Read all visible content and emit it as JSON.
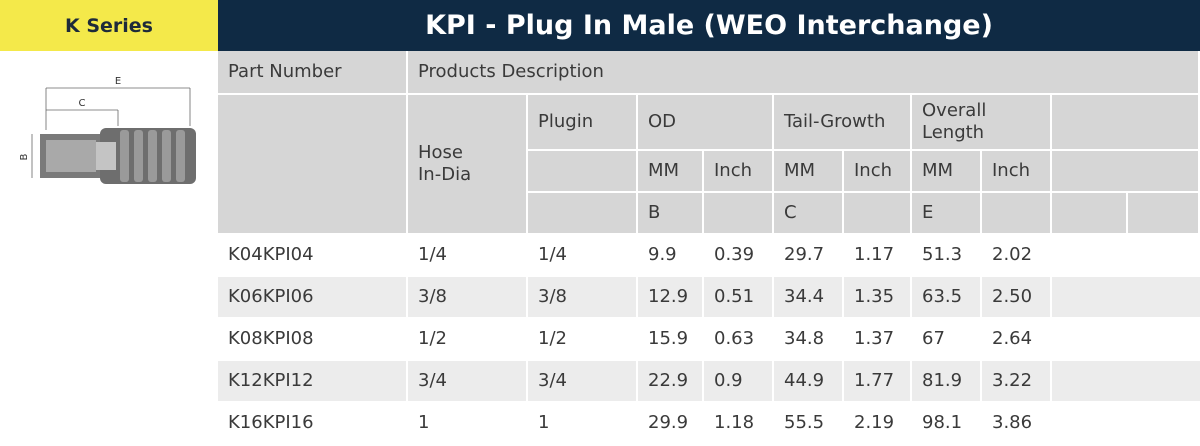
{
  "series_label": "K Series",
  "title": "KPI - Plug In Male (WEO Interchange)",
  "diagram": {
    "labels": {
      "e": "E",
      "c": "C",
      "b": "B"
    }
  },
  "header": {
    "part_number": "Part Number",
    "products_description": "Products Description",
    "hose_in_dia": "Hose In-Dia",
    "plugin": "Plugin",
    "od": "OD",
    "tail_growth": "Tail-Growth",
    "overall_length": "Overall Length",
    "mm": "MM",
    "inch": "Inch",
    "dim_b": "B",
    "dim_c": "C",
    "dim_e": "E"
  },
  "rows": [
    {
      "part": "K04KPI04",
      "hose": "1/4",
      "plugin": "1/4",
      "od_mm": "9.9",
      "od_in": "0.39",
      "tg_mm": "29.7",
      "tg_in": "1.17",
      "ol_mm": "51.3",
      "ol_in": "2.02"
    },
    {
      "part": "K06KPI06",
      "hose": "3/8",
      "plugin": "3/8",
      "od_mm": "12.9",
      "od_in": "0.51",
      "tg_mm": "34.4",
      "tg_in": "1.35",
      "ol_mm": "63.5",
      "ol_in": "2.50"
    },
    {
      "part": "K08KPI08",
      "hose": "1/2",
      "plugin": "1/2",
      "od_mm": "15.9",
      "od_in": "0.63",
      "tg_mm": "34.8",
      "tg_in": "1.37",
      "ol_mm": "67",
      "ol_in": "2.64"
    },
    {
      "part": "K12KPI12",
      "hose": "3/4",
      "plugin": "3/4",
      "od_mm": "22.9",
      "od_in": "0.9",
      "tg_mm": "44.9",
      "tg_in": "1.77",
      "ol_mm": "81.9",
      "ol_in": "3.22"
    },
    {
      "part": "K16KPI16",
      "hose": "1",
      "plugin": "1",
      "od_mm": "29.9",
      "od_in": "1.18",
      "tg_mm": "55.5",
      "tg_in": "2.19",
      "ol_mm": "98.1",
      "ol_in": "3.86"
    }
  ]
}
